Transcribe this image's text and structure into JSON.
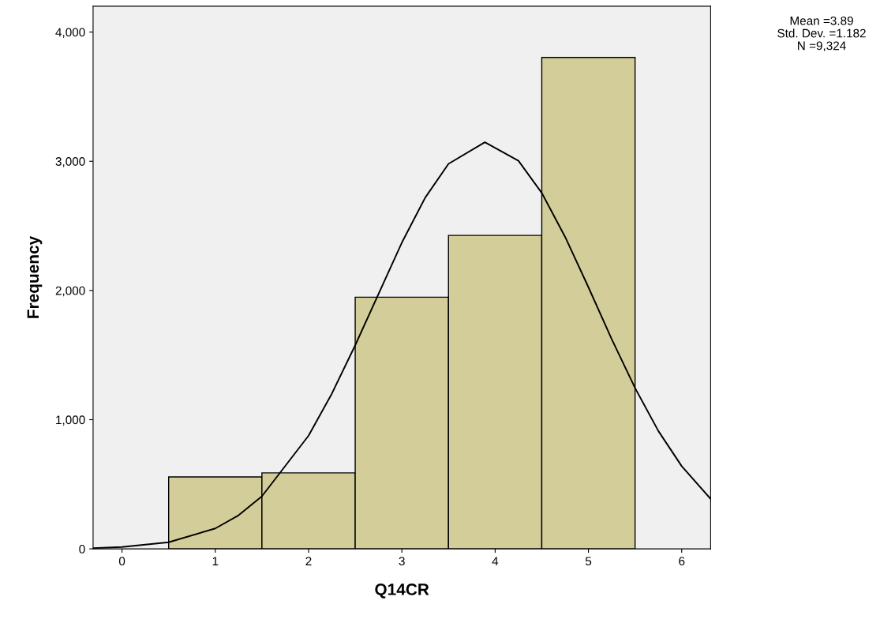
{
  "chart_data": {
    "type": "histogram",
    "xlabel": "Q14CR",
    "ylabel": "Frequency",
    "bins": [
      0.5,
      1.5,
      2.5,
      3.5,
      4.5,
      5.5
    ],
    "values": [
      557,
      588,
      1948,
      2426,
      3804
    ],
    "color": "#d3ce99",
    "series": [
      {
        "type": "line",
        "color": "#000000",
        "x": [
          -0.31,
          0,
          0.5,
          1,
          1.25,
          1.5,
          2,
          2.25,
          2.5,
          3,
          3.25,
          3.5,
          3.89,
          4.25,
          4.5,
          4.75,
          5,
          5.25,
          5.5,
          5.75,
          6,
          6.31
        ],
        "values": [
          6,
          14,
          51,
          158,
          260,
          407,
          876,
          1202,
          1576,
          2370,
          2718,
          2980,
          3147,
          3004,
          2755,
          2415,
          2025,
          1623,
          1245,
          912,
          640,
          387
        ]
      }
    ],
    "xlim": [
      -0.31,
      6.31
    ],
    "xticks": [
      0,
      1,
      2,
      3,
      4,
      5,
      6
    ],
    "ylim": [
      0,
      4200
    ],
    "yticks": [
      0,
      {
        "value": 1000,
        "label": "1,000"
      },
      {
        "value": 2000,
        "label": "2,000"
      },
      {
        "value": 3000,
        "label": "3,000"
      },
      {
        "value": 4000,
        "label": "4,000"
      }
    ],
    "grid": false,
    "legend": false,
    "annotations": [
      "Mean =3.89",
      "Std. Dev. =1.182",
      "N =9,324"
    ]
  }
}
